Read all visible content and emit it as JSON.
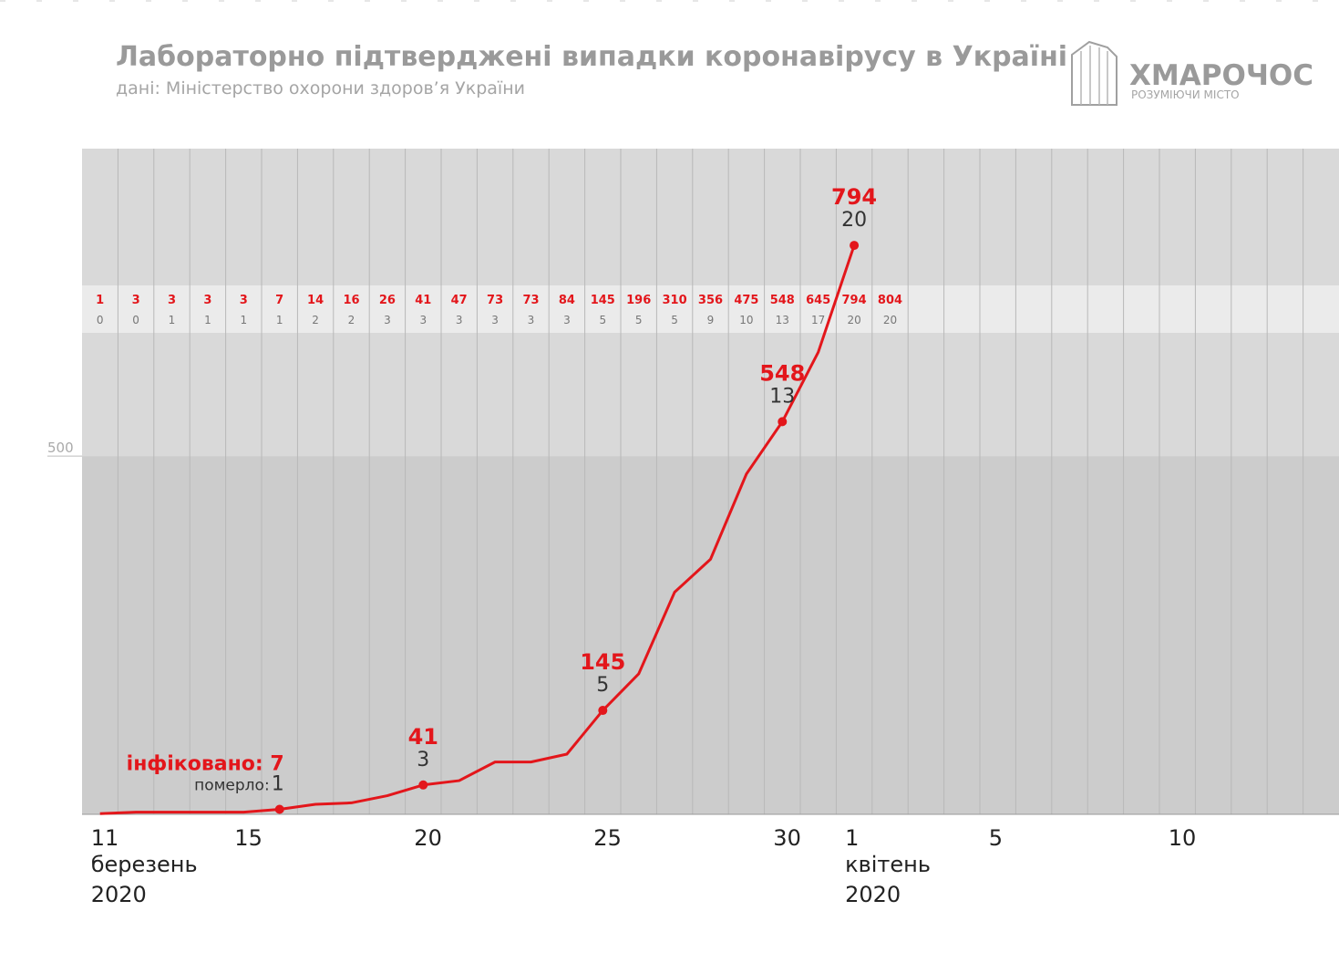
{
  "chart_data": {
    "type": "line",
    "title": "Лабораторно підтверджені випадки коронавірусу в Україні",
    "subtitle": "дані: Міністерство охорони здоров’я України",
    "logo": {
      "name": "ХМАРОЧОС",
      "tagline": "РОЗУМІЮЧИ МІСТО"
    },
    "categories": [
      "11",
      null,
      null,
      null,
      "15",
      null,
      null,
      null,
      null,
      "20",
      null,
      null,
      null,
      null,
      "25",
      null,
      null,
      null,
      null,
      "30",
      null,
      "1",
      null,
      null,
      null,
      "5",
      null,
      null,
      null,
      null,
      "10",
      null,
      null,
      null,
      null
    ],
    "months": [
      {
        "name": "березень",
        "year": "2020"
      },
      {
        "name": "квітень",
        "year": "2020"
      }
    ],
    "series": [
      {
        "name": "інфіковано",
        "color": "#e3161b",
        "values": [
          1,
          3,
          3,
          3,
          3,
          7,
          14,
          16,
          26,
          41,
          47,
          73,
          73,
          84,
          145,
          196,
          310,
          356,
          475,
          548,
          645,
          794,
          null,
          null,
          null,
          null,
          null,
          null,
          null,
          null,
          null,
          null,
          null,
          null,
          null
        ]
      }
    ],
    "table": {
      "infected": [
        1,
        3,
        3,
        3,
        3,
        7,
        14,
        16,
        26,
        41,
        47,
        73,
        73,
        84,
        145,
        196,
        310,
        356,
        475,
        548,
        645,
        794,
        804
      ],
      "deaths": [
        0,
        0,
        1,
        1,
        1,
        1,
        2,
        2,
        3,
        3,
        3,
        3,
        3,
        3,
        5,
        5,
        5,
        9,
        10,
        13,
        17,
        20,
        20
      ]
    },
    "annotations": [
      {
        "label": "інфіковано:",
        "value": 7,
        "sub": "померло:",
        "deaths": 1
      },
      {
        "value": 41,
        "deaths": 3
      },
      {
        "value": 145,
        "deaths": 5
      },
      {
        "value": 548,
        "deaths": 13
      },
      {
        "value": 794,
        "deaths": 20
      }
    ],
    "ylim": [
      0,
      929
    ],
    "yticks": [
      500
    ],
    "grid": true
  }
}
